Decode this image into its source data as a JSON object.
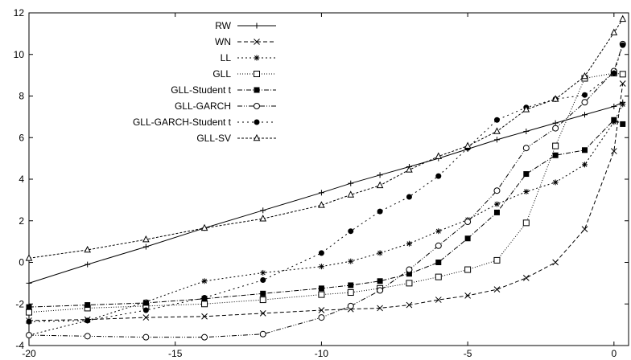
{
  "chart_data": {
    "type": "line",
    "title": "",
    "xlabel": "",
    "ylabel": "",
    "xlim": [
      -20,
      0.5
    ],
    "ylim": [
      -4,
      12
    ],
    "x_ticks": [
      -20,
      -15,
      -10,
      -5,
      0
    ],
    "y_ticks": [
      -4,
      -2,
      0,
      2,
      4,
      6,
      8,
      10,
      12
    ],
    "x_tick_labels": [
      "-20",
      "-15",
      "-10",
      "-5",
      "0"
    ],
    "y_tick_labels": [
      "-4",
      "-2",
      "0",
      "2",
      "4",
      "6",
      "8",
      "10",
      "12"
    ],
    "grid": false,
    "legend_position": "top-center",
    "series": [
      {
        "name": "RW",
        "marker": "plus",
        "dash": "",
        "x": [
          -20,
          -18,
          -16,
          -14,
          -12,
          -10,
          -9,
          -8,
          -7,
          -6,
          -5,
          -4,
          -3,
          -2,
          -1,
          0,
          0.3
        ],
        "y": [
          -1.0,
          -0.1,
          0.75,
          1.65,
          2.5,
          3.35,
          3.8,
          4.2,
          4.6,
          5.0,
          5.45,
          5.9,
          6.3,
          6.7,
          7.1,
          7.5,
          7.7
        ]
      },
      {
        "name": "WN",
        "marker": "x",
        "dash": "5,3",
        "x": [
          -20,
          -18,
          -16,
          -14,
          -12,
          -10,
          -9,
          -8,
          -7,
          -6,
          -5,
          -4,
          -3,
          -2,
          -1,
          0,
          0.3
        ],
        "y": [
          -2.8,
          -2.75,
          -2.65,
          -2.6,
          -2.45,
          -2.3,
          -2.25,
          -2.2,
          -2.05,
          -1.8,
          -1.6,
          -1.3,
          -0.75,
          0.0,
          1.6,
          5.35,
          8.6
        ]
      },
      {
        "name": "LL",
        "marker": "star",
        "dash": "2,3",
        "x": [
          -20,
          -18,
          -16,
          -14,
          -12,
          -10,
          -9,
          -8,
          -7,
          -6,
          -5,
          -4,
          -3,
          -2,
          -1,
          0,
          0.3
        ],
        "y": [
          -3.5,
          -2.8,
          -1.9,
          -0.9,
          -0.5,
          -0.2,
          0.05,
          0.45,
          0.9,
          1.5,
          2.05,
          2.8,
          3.4,
          3.85,
          4.7,
          6.75,
          7.6
        ]
      },
      {
        "name": "GLL",
        "marker": "square-open",
        "dash": "1,2",
        "x": [
          -20,
          -18,
          -16,
          -14,
          -12,
          -10,
          -9,
          -8,
          -7,
          -6,
          -5,
          -4,
          -3,
          -2,
          -1,
          0,
          0.3
        ],
        "y": [
          -2.4,
          -2.2,
          -2.1,
          -2.0,
          -1.8,
          -1.55,
          -1.45,
          -1.25,
          -1.0,
          -0.7,
          -0.35,
          0.1,
          1.9,
          5.6,
          8.85,
          9.1,
          9.05
        ]
      },
      {
        "name": "GLL-Student t",
        "marker": "square-filled",
        "dash": "6,2,1,2",
        "x": [
          -20,
          -18,
          -16,
          -14,
          -12,
          -10,
          -9,
          -8,
          -7,
          -6,
          -5,
          -4,
          -3,
          -2,
          -1,
          0,
          0.3
        ],
        "y": [
          -2.15,
          -2.05,
          -1.95,
          -1.75,
          -1.5,
          -1.25,
          -1.1,
          -0.9,
          -0.55,
          0.0,
          1.15,
          2.4,
          4.25,
          5.15,
          5.4,
          6.85,
          6.65
        ]
      },
      {
        "name": "GLL-GARCH",
        "marker": "circle-open",
        "dash": "6,2,1,2,1,2",
        "x": [
          -20,
          -18,
          -16,
          -14,
          -12,
          -10,
          -9,
          -8,
          -7,
          -6,
          -5,
          -4,
          -3,
          -2,
          -1,
          0,
          0.3
        ],
        "y": [
          -3.5,
          -3.55,
          -3.6,
          -3.6,
          -3.45,
          -2.65,
          -2.1,
          -1.35,
          -0.35,
          0.8,
          1.95,
          3.45,
          5.5,
          6.45,
          7.7,
          9.2,
          10.5
        ]
      },
      {
        "name": "GLL-GARCH-Student t",
        "marker": "circle-filled",
        "dash": "2,4",
        "x": [
          -20,
          -18,
          -16,
          -14,
          -12,
          -10,
          -9,
          -8,
          -7,
          -6,
          -5,
          -4,
          -3,
          -2,
          -1,
          0,
          0.3
        ],
        "y": [
          -2.85,
          -2.8,
          -2.3,
          -1.7,
          -0.85,
          0.45,
          1.5,
          2.45,
          3.15,
          4.15,
          5.5,
          6.85,
          7.45,
          7.85,
          8.05,
          9.1,
          10.45
        ]
      },
      {
        "name": "GLL-SV",
        "marker": "triangle-open",
        "dash": "3,2",
        "x": [
          -20,
          -18,
          -16,
          -14,
          -12,
          -10,
          -9,
          -8,
          -7,
          -6,
          -5,
          -4,
          -3,
          -2,
          -1,
          0,
          0.3
        ],
        "y": [
          0.2,
          0.6,
          1.1,
          1.65,
          2.1,
          2.75,
          3.25,
          3.7,
          4.45,
          5.1,
          5.6,
          6.3,
          7.35,
          7.85,
          8.95,
          11.05,
          11.7
        ]
      }
    ]
  }
}
